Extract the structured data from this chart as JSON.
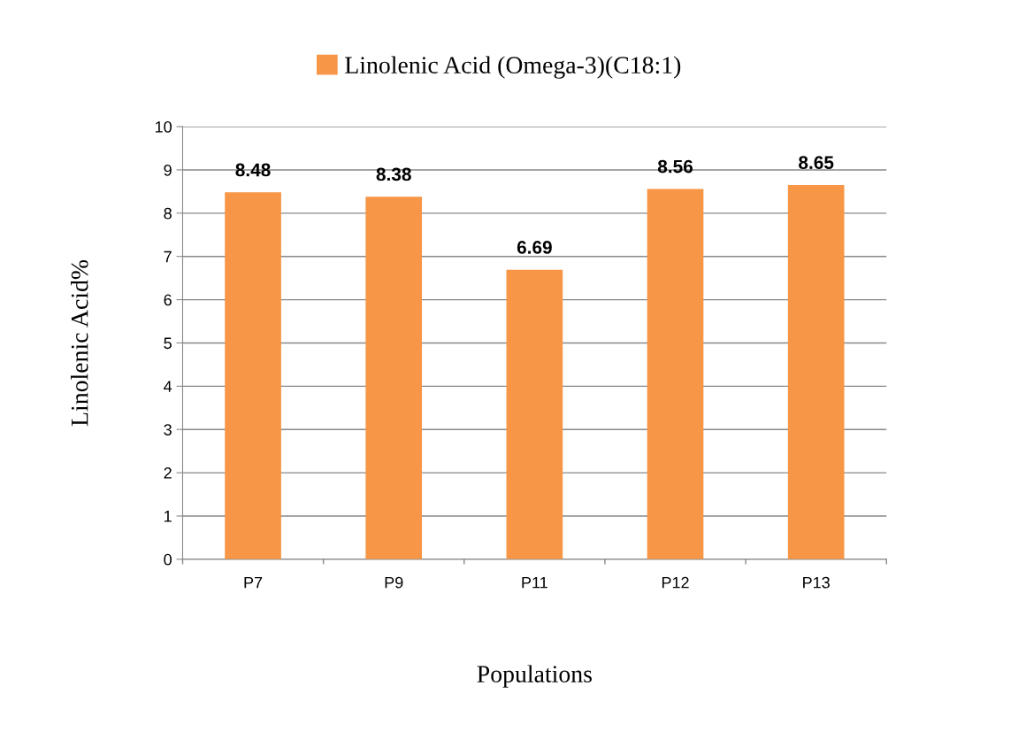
{
  "chart_data": {
    "type": "bar",
    "xlabel": "Populations",
    "ylabel": "Linolenic Acid%",
    "categories": [
      "P7",
      "P9",
      "P11",
      "P12",
      "P13"
    ],
    "series": [
      {
        "name": "Linolenic Acid (Omega-3)(C18:1)",
        "color": "#f79646",
        "values": [
          8.48,
          8.38,
          6.69,
          8.56,
          8.65
        ]
      }
    ],
    "ylim": [
      0,
      10
    ],
    "yticks": [
      0,
      1,
      2,
      3,
      4,
      5,
      6,
      7,
      8,
      9,
      10
    ],
    "grid": "y",
    "legend": "top",
    "data_labels": true
  }
}
